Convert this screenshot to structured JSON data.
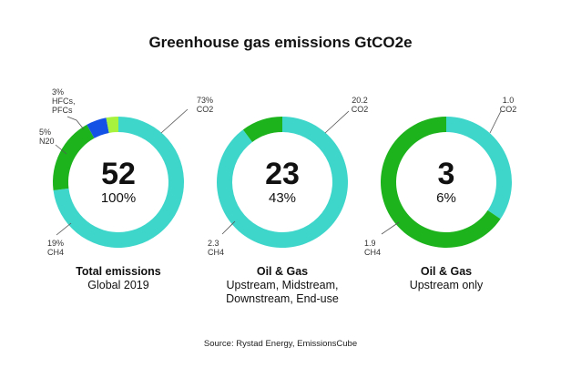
{
  "title": "Greenhouse gas emissions GtCO2e",
  "source": "Source: Rystad Energy, EmissionsCube",
  "colors": {
    "CO2": "#3ed6cb",
    "CH4": "#1db31d",
    "N2O": "#1452e6",
    "HFCs": "#a6f23c"
  },
  "chart_data": [
    {
      "type": "pie",
      "center_value": "52",
      "center_pct": "100%",
      "caption": [
        "Total emissions",
        "Global 2019"
      ],
      "slices": [
        {
          "key": "CO2",
          "value": 73,
          "label": [
            "73%",
            "CO2"
          ]
        },
        {
          "key": "CH4",
          "value": 19,
          "label": [
            "19%",
            "CH4"
          ]
        },
        {
          "key": "N2O",
          "value": 5,
          "label": [
            "5%",
            "N20"
          ]
        },
        {
          "key": "HFCs",
          "value": 3,
          "label": [
            "3%",
            "HFCs,",
            "PFCs"
          ]
        }
      ]
    },
    {
      "type": "pie",
      "center_value": "23",
      "center_pct": "43%",
      "caption": [
        "Oil & Gas",
        "Upstream, Midstream,",
        "Downstream, End-use"
      ],
      "slices": [
        {
          "key": "CO2",
          "value": 20.2,
          "label": [
            "20.2",
            "CO2"
          ]
        },
        {
          "key": "CH4",
          "value": 2.3,
          "label": [
            "2.3",
            "CH4"
          ]
        }
      ]
    },
    {
      "type": "pie",
      "center_value": "3",
      "center_pct": "6%",
      "caption": [
        "Oil & Gas",
        "Upstream only"
      ],
      "slices": [
        {
          "key": "CO2",
          "value": 1.0,
          "label": [
            "1.0",
            "CO2"
          ]
        },
        {
          "key": "CH4",
          "value": 1.9,
          "label": [
            "1.9",
            "CH4"
          ]
        }
      ]
    }
  ]
}
